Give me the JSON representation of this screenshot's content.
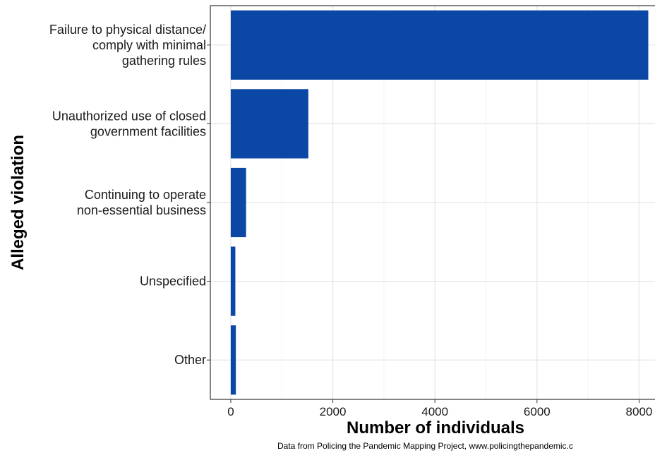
{
  "chart_data": {
    "type": "bar",
    "orientation": "horizontal",
    "title": "",
    "xlabel": "Number of individuals",
    "ylabel": "Alleged violation",
    "categories": [
      [
        "Failure to physical distance/",
        "comply with minimal",
        "gathering rules"
      ],
      [
        "Unauthorized use of closed",
        "government facilities"
      ],
      [
        "Continuing to operate",
        "non-essential business"
      ],
      [
        "Unspecified"
      ],
      [
        "Other"
      ]
    ],
    "values": [
      8180,
      1520,
      300,
      90,
      100
    ],
    "xlim": [
      -400,
      8450
    ],
    "xticks": [
      0,
      2000,
      4000,
      6000,
      8000
    ],
    "xtick_labels": [
      "0",
      "2000",
      "4000",
      "6000",
      "8000"
    ],
    "grid": true,
    "bar_color": "#0b47a5",
    "caption": "Data from Policing the Pandemic Mapping Project, www.policingthepandemic.c"
  }
}
